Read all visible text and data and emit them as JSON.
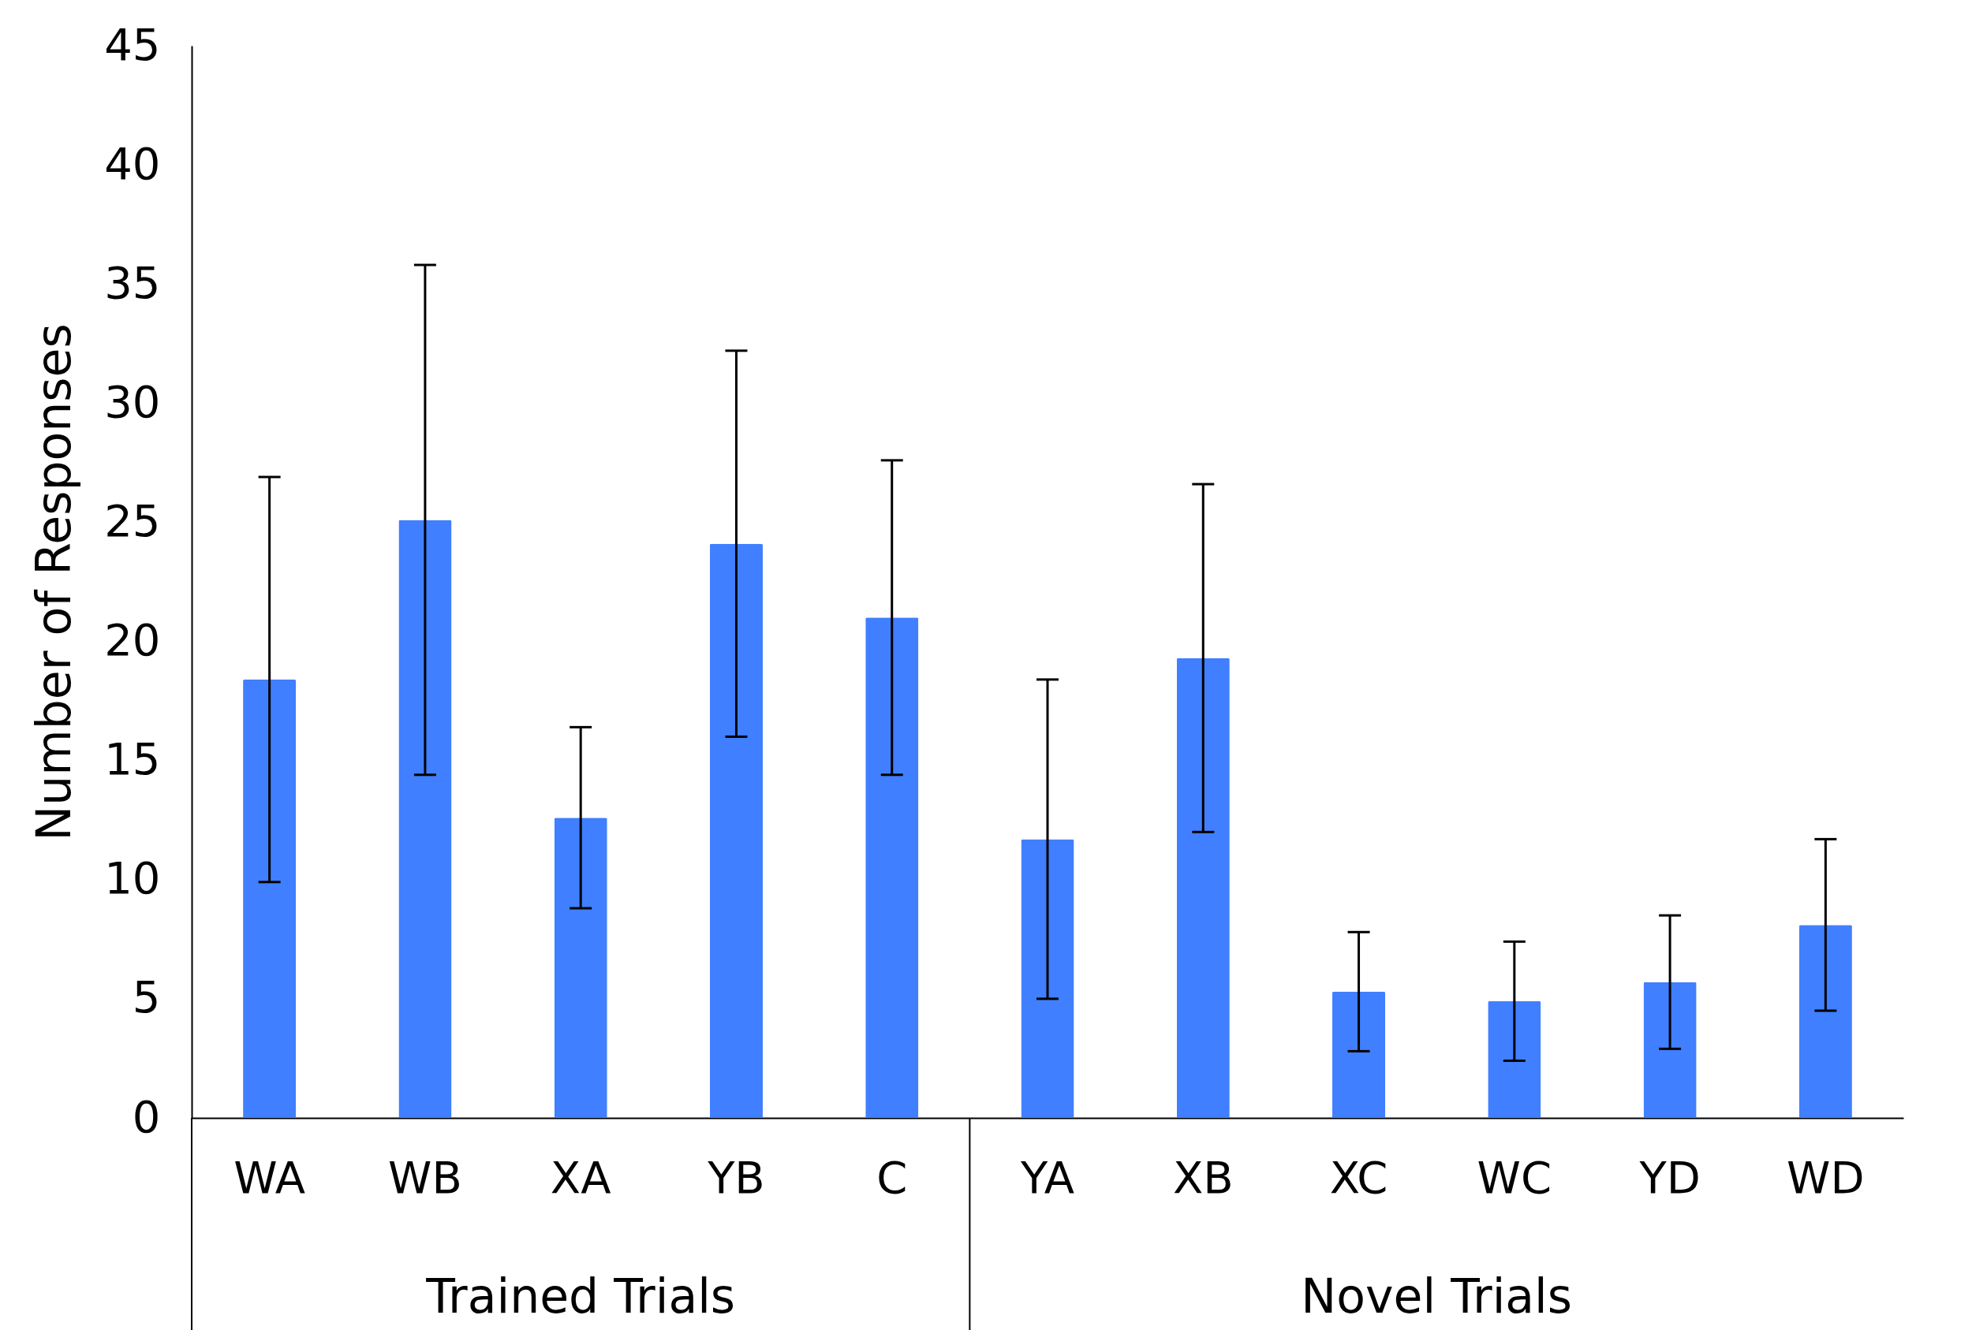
{
  "chart_data": {
    "type": "bar",
    "ylabel": "Number of Responses",
    "categories": [
      "WA",
      "WB",
      "XA",
      "YB",
      "C",
      "YA",
      "XB",
      "XC",
      "WC",
      "YD",
      "WD"
    ],
    "values": [
      18.4,
      25.1,
      12.6,
      24.1,
      21.0,
      11.7,
      19.3,
      5.3,
      4.9,
      5.7,
      8.1
    ],
    "errors": [
      8.5,
      10.7,
      3.8,
      8.1,
      6.6,
      6.7,
      7.3,
      2.5,
      2.5,
      2.8,
      3.6
    ],
    "color": "#407fff",
    "ylim": [
      0,
      45
    ],
    "yticks": [
      0,
      5,
      10,
      15,
      20,
      25,
      30,
      35,
      40,
      45
    ],
    "grid": false,
    "annotations": [
      "Trained Trials",
      "Novel Trials"
    ]
  }
}
